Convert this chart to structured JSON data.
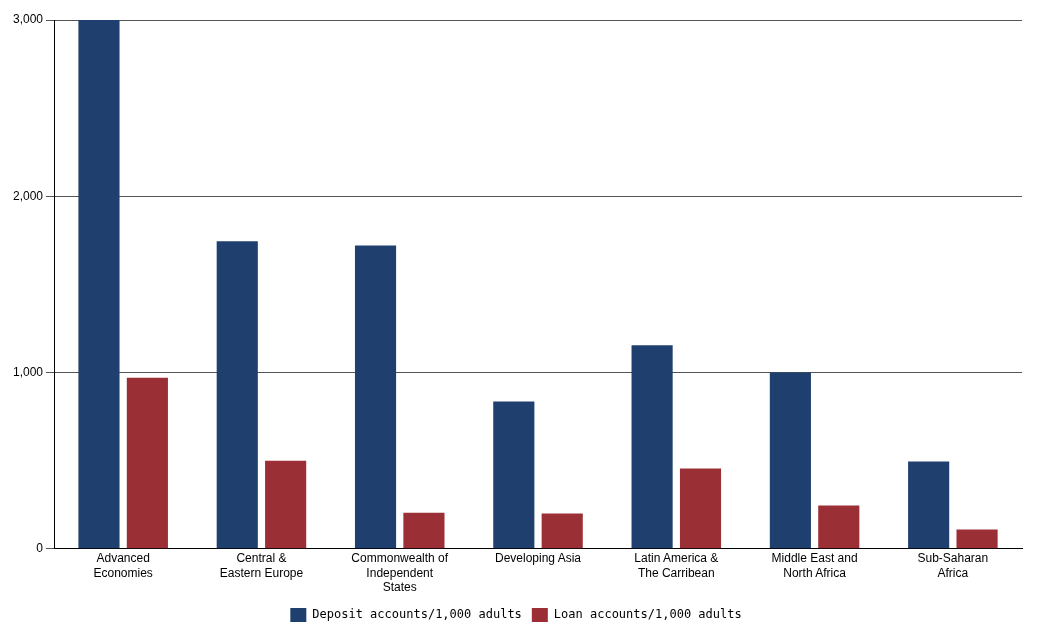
{
  "chart_data": {
    "type": "bar",
    "categories": [
      "Advanced Economies",
      "Central & Eastern Europe",
      "Commonwealth of Independent States",
      "Developing Asia",
      "Latin America & The Carribean",
      "Middle East and North Africa",
      "Sub-Saharan Africa"
    ],
    "series": [
      {
        "name": "Deposit accounts/1,000 adults",
        "color": "#1f3f6e",
        "values": [
          3000,
          1745,
          1720,
          835,
          1155,
          1000,
          495
        ]
      },
      {
        "name": "Loan accounts/1,000 adults",
        "color": "#9b2f36",
        "values": [
          970,
          500,
          205,
          200,
          455,
          245,
          110
        ]
      }
    ],
    "ylim": [
      0,
      3000
    ],
    "yticks": [
      {
        "value": 0,
        "label": "0"
      },
      {
        "value": 1000,
        "label": "1,000"
      },
      {
        "value": 2000,
        "label": "2,000"
      },
      {
        "value": 3000,
        "label": "3,000"
      }
    ],
    "grid": "y",
    "legend": "bottom"
  }
}
